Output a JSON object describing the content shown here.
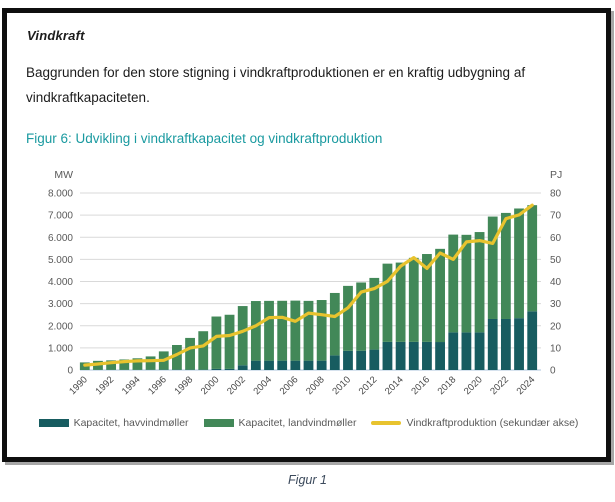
{
  "page": {
    "section_title": "Vindkraft",
    "paragraph": "Baggrunden for den store stigning i vindkraftproduktionen er en kraftig udbygning af vindkraftkapaciteten.",
    "figure_heading": "Figur 6: Udvikling i vindkraftkapacitet og vindkraftproduktion",
    "caption_below": "Figur 1"
  },
  "colors": {
    "offshore_bar": "#175c60",
    "onshore_bar": "#428858",
    "production_line": "#e8c32e",
    "heading_teal": "#1a9aa0",
    "axis_text": "#595959",
    "x_tick_text": "#474747",
    "gridline": "#d9d9d9",
    "baseline": "#aec6de",
    "body_text": "#1c1c1c",
    "caption_text": "#3c4a5c"
  },
  "chart_data": {
    "type": "bar",
    "subtype": "stacked-bars-with-secondary-axis-line",
    "title": "Figur 6: Udvikling i vindkraftkapacitet og vindkraftproduktion",
    "grid": "horizontal",
    "legend_position": "bottom",
    "left_axis": {
      "unit": "MW",
      "min": 0,
      "max": 8000,
      "tick_step": 1000,
      "tick_labels": [
        "0",
        "1.000",
        "2.000",
        "3.000",
        "4.000",
        "5.000",
        "6.000",
        "7.000",
        "8.000"
      ]
    },
    "right_axis": {
      "unit": "PJ",
      "min": 0,
      "max": 80,
      "tick_step": 10,
      "tick_labels": [
        "0",
        "10",
        "20",
        "30",
        "40",
        "50",
        "60",
        "70",
        "80"
      ]
    },
    "years": [
      1990,
      1991,
      1992,
      1993,
      1994,
      1995,
      1996,
      1997,
      1998,
      1999,
      2000,
      2001,
      2002,
      2003,
      2004,
      2005,
      2006,
      2007,
      2008,
      2009,
      2010,
      2011,
      2012,
      2013,
      2014,
      2015,
      2016,
      2017,
      2018,
      2019,
      2020,
      2021,
      2022,
      2023,
      2024
    ],
    "x_tick_labels": [
      "1990",
      "1992",
      "1994",
      "1996",
      "1998",
      "2000",
      "2002",
      "2004",
      "2006",
      "2008",
      "2010",
      "2012",
      "2014",
      "2016",
      "2018",
      "2020",
      "2022",
      "2024"
    ],
    "series": [
      {
        "name": "Kapacitet, havvindmøller",
        "type": "bar-stacked",
        "axis": "left",
        "unit": "MW",
        "values": [
          0,
          5,
          5,
          5,
          5,
          10,
          15,
          15,
          15,
          15,
          50,
          50,
          214,
          423,
          423,
          423,
          423,
          423,
          423,
          661,
          868,
          871,
          922,
          1271,
          1271,
          1271,
          1271,
          1264,
          1701,
          1701,
          1701,
          2306,
          2306,
          2343,
          2652
        ]
      },
      {
        "name": "Kapacitet, landvindmøller",
        "type": "bar-stacked",
        "axis": "left",
        "unit": "MW",
        "values": [
          343,
          408,
          431,
          471,
          524,
          604,
          826,
          1115,
          1435,
          1738,
          2367,
          2447,
          2676,
          2694,
          2701,
          2705,
          2713,
          2701,
          2740,
          2821,
          2934,
          3085,
          3240,
          3536,
          3584,
          3799,
          3971,
          4212,
          4419,
          4409,
          4534,
          4629,
          4794,
          4957,
          4798
        ]
      },
      {
        "name": "Vindkraftproduktion (sekundær akse)",
        "type": "line",
        "axis": "right",
        "unit": "PJ",
        "values": [
          2.2,
          2.7,
          3.3,
          3.8,
          4.1,
          4.2,
          4.4,
          7.0,
          10.0,
          10.9,
          15.2,
          15.6,
          17.5,
          20.0,
          23.7,
          23.8,
          22.0,
          25.7,
          25.0,
          24.2,
          28.1,
          35.2,
          36.8,
          40.1,
          46.9,
          50.8,
          45.9,
          52.9,
          50.0,
          57.9,
          58.5,
          57.2,
          68.4,
          70.1,
          74.5
        ]
      }
    ]
  }
}
